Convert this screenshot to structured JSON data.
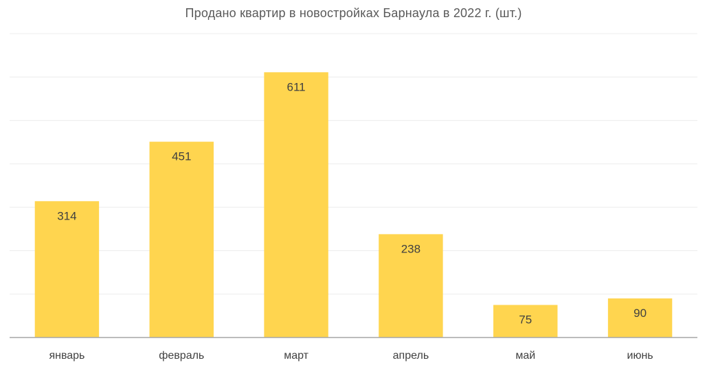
{
  "chart_data": {
    "type": "bar",
    "title": "Продано квартир в новостройках Барнаула в 2022 г. (шт.)",
    "categories": [
      "январь",
      "февраль",
      "март",
      "апрель",
      "май",
      "июнь"
    ],
    "values": [
      314,
      451,
      611,
      238,
      75,
      90
    ],
    "ylim": [
      0,
      700
    ],
    "grid": true,
    "data_labels": [
      "314",
      "451",
      "611",
      "238",
      "75",
      "90"
    ],
    "colors": {
      "bar": "#ffd54f",
      "gridline": "#ececec",
      "axis": "#a6a6a6",
      "text": "#404040"
    }
  }
}
